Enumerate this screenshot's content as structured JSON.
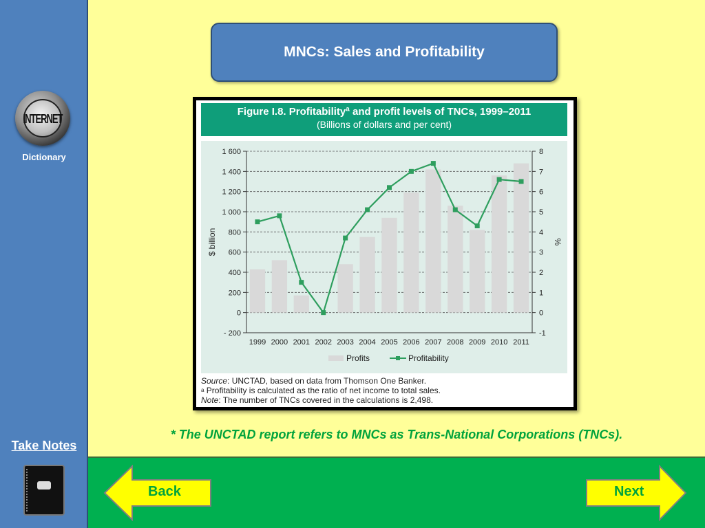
{
  "sidebar": {
    "icon_word": "INTERNET",
    "dictionary_label": "Dictionary",
    "take_notes_label": "Take Notes"
  },
  "slide": {
    "title": "MNCs: Sales and Profitability",
    "footnote": "* The UNCTAD report refers to MNCs as Trans-National Corporations (TNCs)."
  },
  "figure": {
    "title": "Figure I.8. Profitabilityª and profit levels of TNCs, 1999–2011",
    "subtitle": "(Billions of dollars and per cent)",
    "source_label": "Source",
    "source_text": ": UNCTAD, based on data from Thomson One Banker.",
    "footnote_mark": "a",
    "footnote_text": " Profitability is calculated as the ratio of net income to total sales.",
    "note_label": "Note",
    "note_text": ": The number of TNCs covered in the calculations is 2,498."
  },
  "chart_data": {
    "type": "bar",
    "categories": [
      "1999",
      "2000",
      "2001",
      "2002",
      "2003",
      "2004",
      "2005",
      "2006",
      "2007",
      "2008",
      "2009",
      "2010",
      "2011"
    ],
    "series": [
      {
        "name": "Profits",
        "type": "bar",
        "axis": "left",
        "color": "#d9d9d9",
        "values": [
          430,
          520,
          170,
          0,
          480,
          750,
          940,
          1190,
          1420,
          1060,
          820,
          1360,
          1480
        ]
      },
      {
        "name": "Profitability",
        "type": "line",
        "axis": "right",
        "color": "#2e9e5e",
        "values": [
          4.5,
          4.8,
          1.5,
          0.0,
          3.7,
          5.1,
          6.2,
          7.0,
          7.4,
          5.1,
          4.3,
          6.6,
          6.5
        ]
      }
    ],
    "ylabel": "$ billion",
    "y2label": "%",
    "ylim": [
      -200,
      1600
    ],
    "y2lim": [
      -1,
      8
    ],
    "yticks": [
      -200,
      0,
      200,
      400,
      600,
      800,
      1000,
      1200,
      1400,
      1600
    ],
    "yticklabels": [
      "- 200",
      "0",
      "200",
      "400",
      "600",
      "800",
      "1 000",
      "1 200",
      "1 400",
      "1 600"
    ],
    "y2ticks": [
      -1,
      0,
      1,
      2,
      3,
      4,
      5,
      6,
      7,
      8
    ],
    "grid": "horizontal dashed",
    "legend": "bottom-center"
  },
  "navigation": {
    "back_label": "Back",
    "next_label": "Next"
  },
  "colors": {
    "sidebar": "#4f81bd",
    "background": "#ffff99",
    "bottom_bar": "#00b050",
    "arrow_fill": "#ffff00",
    "accent_text": "#00a33c",
    "figure_header": "#0f9e7a",
    "chart_panel": "#dfeee9"
  }
}
